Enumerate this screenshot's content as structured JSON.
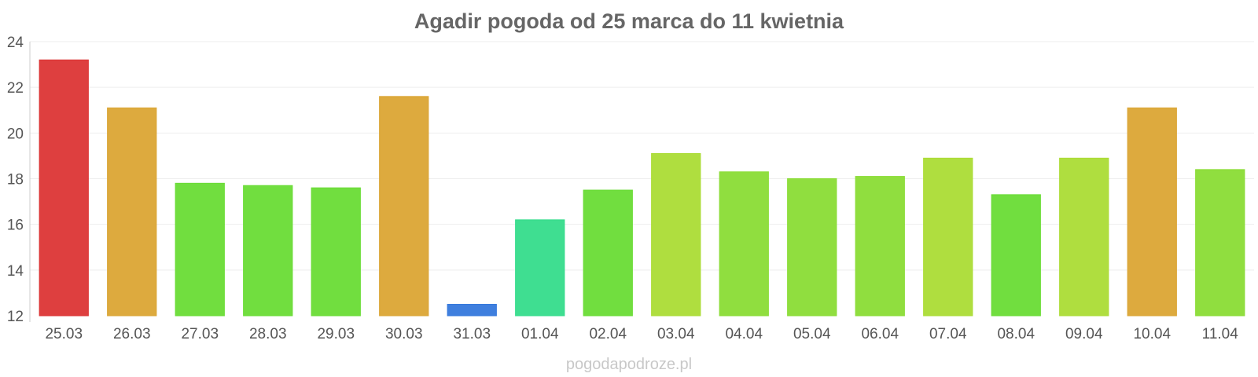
{
  "chart_data": {
    "type": "bar",
    "title": "Agadir pogoda od 25 marca do 11 kwietnia",
    "xlabel": "",
    "ylabel": "",
    "categories": [
      "25.03",
      "26.03",
      "27.03",
      "28.03",
      "29.03",
      "30.03",
      "31.03",
      "01.04",
      "02.04",
      "03.04",
      "04.04",
      "05.04",
      "06.04",
      "07.04",
      "08.04",
      "09.04",
      "10.04",
      "11.04"
    ],
    "values": [
      23.2,
      21.1,
      17.8,
      17.7,
      17.6,
      21.6,
      12.5,
      16.2,
      17.5,
      19.1,
      18.3,
      18.0,
      18.1,
      18.9,
      17.3,
      18.9,
      21.1,
      18.4
    ],
    "bar_colors": [
      "#dc3535",
      "#dba534",
      "#69dc35",
      "#69dc35",
      "#69dc35",
      "#dba534",
      "#3578dc",
      "#35dc8b",
      "#69dc35",
      "#abdc35",
      "#8adc35",
      "#8adc35",
      "#8adc35",
      "#abdc35",
      "#69dc35",
      "#abdc35",
      "#dba534",
      "#8adc35"
    ],
    "ylim": [
      12,
      24
    ],
    "yticks": [
      "12",
      "14",
      "16",
      "18",
      "20",
      "22",
      "24"
    ],
    "grid": true,
    "legend": "none",
    "watermark": "pogodapodroze.pl"
  }
}
